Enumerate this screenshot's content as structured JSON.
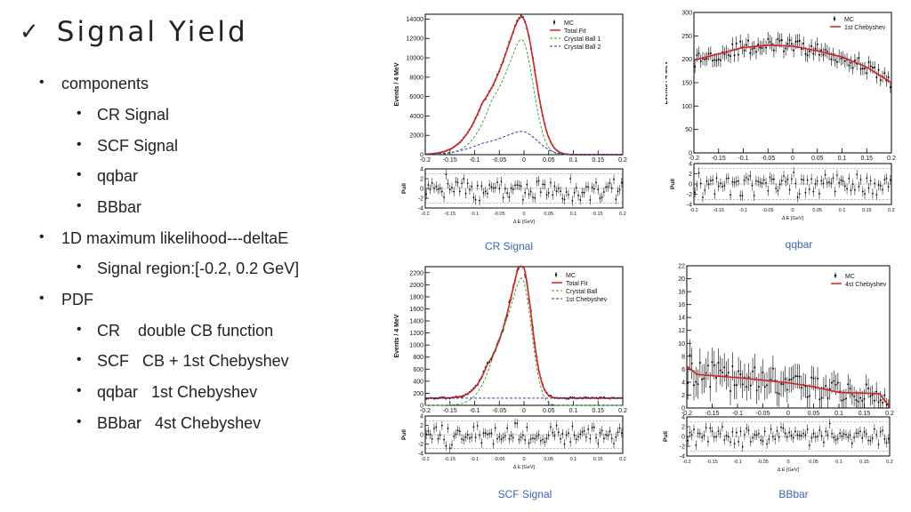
{
  "slide": {
    "check_icon": "✓",
    "title": "Signal Yield",
    "bullets": [
      {
        "level": 1,
        "text": "components"
      },
      {
        "level": 2,
        "text": "CR Signal"
      },
      {
        "level": 2,
        "text": "SCF Signal"
      },
      {
        "level": 2,
        "text": "qqbar"
      },
      {
        "level": 2,
        "text": "BBbar"
      },
      {
        "level": 1,
        "text": "1D maximum likelihood---deltaE"
      },
      {
        "level": 2,
        "text": "Signal region:[-0.2, 0.2 GeV]"
      },
      {
        "level": 1,
        "text": "PDF"
      },
      {
        "level": 2,
        "text": "CR    double CB function"
      },
      {
        "level": 2,
        "text": "SCF   CB + 1st Chebyshev"
      },
      {
        "level": 2,
        "text": "qqbar   1st Chebyshev"
      },
      {
        "level": 2,
        "text": "BBbar   4st Chebyshev"
      }
    ],
    "captions": {
      "cr": "CR Signal",
      "qqbar": "qqbar",
      "scf": "SCF Signal",
      "bbbar": "BBbar"
    }
  },
  "colors": {
    "fit": "#d62020",
    "cb1": "#2e9a2e",
    "cb2": "#2020c0",
    "caption": "#3b63b8"
  },
  "chart_data": [
    {
      "id": "cr",
      "type": "scatter",
      "ylabel": "Events / 4 MeV",
      "xlabel": "",
      "xlim": [
        -0.2,
        0.2
      ],
      "ylim": [
        0,
        14500
      ],
      "yticks": [
        0,
        2000,
        4000,
        6000,
        8000,
        10000,
        12000,
        14000
      ],
      "xticks": [
        -0.2,
        -0.15,
        -0.1,
        -0.05,
        0,
        0.05,
        0.1,
        0.15,
        0.2
      ],
      "legend": [
        {
          "label": "MC",
          "style": "points"
        },
        {
          "label": "Total Fit",
          "style": "solid",
          "color": "#d62020"
        },
        {
          "label": "Crystal Ball 1",
          "style": "dashed",
          "color": "#2e9a2e"
        },
        {
          "label": "Crystal Ball 2",
          "style": "dashed",
          "color": "#2020c0"
        }
      ],
      "peak": -0.005,
      "curves": [
        {
          "name": "Total Fit",
          "amp": 14200,
          "sigma": 0.03,
          "tail": 0.08
        },
        {
          "name": "Crystal Ball 1",
          "amp": 11900,
          "sigma": 0.026,
          "tail": 0.06
        },
        {
          "name": "Crystal Ball 2",
          "amp": 2400,
          "sigma": 0.035,
          "tail": 0.08
        }
      ],
      "pull": {
        "ylim": [
          -4,
          4
        ],
        "yticks": [
          -4,
          -2,
          0,
          2,
          4
        ],
        "xlabel": "Δ E [GeV]"
      }
    },
    {
      "id": "qqbar",
      "type": "scatter",
      "ylabel": "Events / 4 MeV",
      "xlabel": "",
      "xlim": [
        -0.2,
        0.2
      ],
      "ylim": [
        0,
        300
      ],
      "yticks": [
        0,
        50,
        100,
        150,
        200,
        250,
        300
      ],
      "xticks": [
        -0.2,
        -0.15,
        -0.1,
        -0.05,
        0,
        0.05,
        0.1,
        0.15,
        0.2
      ],
      "legend": [
        {
          "label": "MC",
          "style": "points"
        },
        {
          "label": "1st Chebyshev",
          "style": "solid",
          "color": "#d62020"
        }
      ],
      "poly": [
        [
          -0.2,
          198
        ],
        [
          -0.1,
          225
        ],
        [
          -0.05,
          230
        ],
        [
          0,
          228
        ],
        [
          0.05,
          218
        ],
        [
          0.1,
          205
        ],
        [
          0.15,
          183
        ],
        [
          0.2,
          150
        ]
      ],
      "pull": {
        "ylim": [
          -4,
          4
        ],
        "yticks": [
          -4,
          -2,
          0,
          2,
          4
        ],
        "xlabel": "Δ E [GeV]"
      }
    },
    {
      "id": "scf",
      "type": "scatter",
      "ylabel": "Events / 4 MeV",
      "xlabel": "",
      "xlim": [
        -0.2,
        0.2
      ],
      "ylim": [
        0,
        2300
      ],
      "yticks": [
        0,
        200,
        400,
        600,
        800,
        1000,
        1200,
        1400,
        1600,
        1800,
        2000,
        2200
      ],
      "xticks": [
        -0.2,
        -0.15,
        -0.1,
        -0.05,
        0,
        0.05,
        0.1,
        0.15,
        0.2
      ],
      "legend": [
        {
          "label": "MC",
          "style": "points"
        },
        {
          "label": "Total Fit",
          "style": "solid",
          "color": "#d62020"
        },
        {
          "label": "Crystal Ball",
          "style": "dashed",
          "color": "#2e9a2e"
        },
        {
          "label": "1st Chebyshev",
          "style": "dashed",
          "color": "#2020c0"
        }
      ],
      "peak": -0.005,
      "curves": [
        {
          "name": "Total Fit",
          "amp": 2230,
          "sigma": 0.022,
          "tail": 0.07,
          "base": 120
        },
        {
          "name": "Crystal Ball",
          "amp": 2110,
          "sigma": 0.022,
          "tail": 0.05,
          "base": 0
        },
        {
          "name": "1st Chebyshev",
          "amp": 0,
          "sigma": 1,
          "tail": 1,
          "base": 120
        }
      ],
      "pull": {
        "ylim": [
          -4,
          4
        ],
        "yticks": [
          -4,
          -2,
          0,
          2,
          4
        ],
        "xlabel": "Δ E [GeV]"
      }
    },
    {
      "id": "bbbar",
      "type": "scatter",
      "ylabel": "Events / 4 MeV",
      "xlabel": "",
      "xlim": [
        -0.2,
        0.2
      ],
      "ylim": [
        0,
        22
      ],
      "yticks": [
        0,
        2,
        4,
        6,
        8,
        10,
        12,
        14,
        16,
        18,
        20,
        22
      ],
      "xticks": [
        -0.2,
        -0.15,
        -0.1,
        -0.05,
        0,
        0.05,
        0.1,
        0.15,
        0.2
      ],
      "legend": [
        {
          "label": "MC",
          "style": "points"
        },
        {
          "label": "4st Chebyshev",
          "style": "solid",
          "color": "#d62020"
        }
      ],
      "poly": [
        [
          -0.2,
          6.5
        ],
        [
          -0.18,
          5.2
        ],
        [
          -0.15,
          5.0
        ],
        [
          -0.1,
          4.7
        ],
        [
          -0.05,
          4.3
        ],
        [
          0,
          3.9
        ],
        [
          0.05,
          3.3
        ],
        [
          0.1,
          2.4
        ],
        [
          0.15,
          2.3
        ],
        [
          0.18,
          2.2
        ],
        [
          0.2,
          0.2
        ]
      ],
      "pull": {
        "ylim": [
          -4,
          4
        ],
        "yticks": [
          -4,
          -2,
          0,
          2,
          4
        ],
        "xlabel": "Δ E [GeV]"
      }
    }
  ]
}
